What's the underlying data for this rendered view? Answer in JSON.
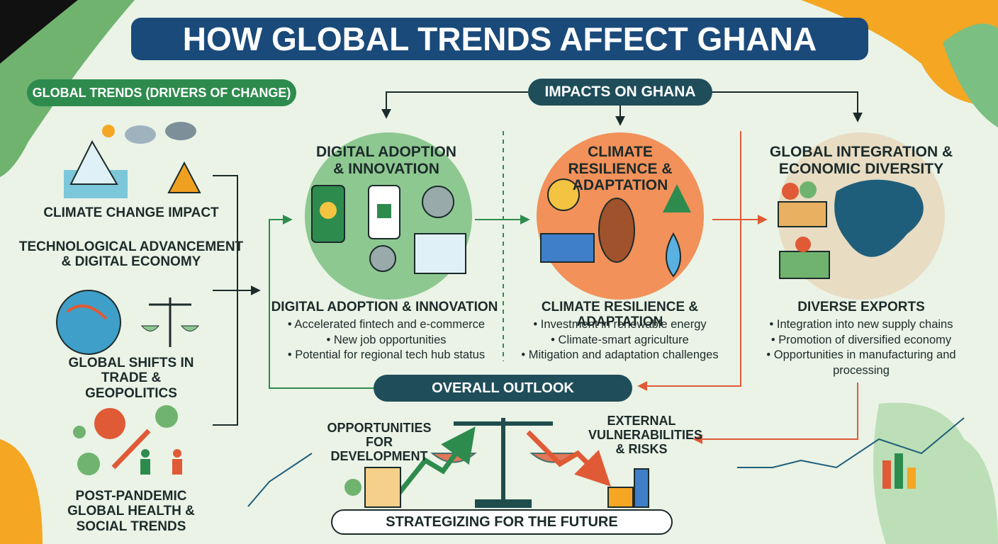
{
  "title": "HOW GLOBAL TRENDS AFFECT GHANA",
  "drivers": {
    "heading": "GLOBAL TRENDS (DRIVERS OF CHANGE)",
    "items": [
      "CLIMATE CHANGE IMPACT",
      "TECHNOLOGICAL ADVANCEMENT & DIGITAL ECONOMY",
      "GLOBAL SHIFTS IN TRADE & GEOPOLITICS",
      "POST-PANDEMIC GLOBAL HEALTH & SOCIAL TRENDS"
    ]
  },
  "impacts": {
    "heading": "IMPACTS ON GHANA",
    "columns": [
      {
        "title": "DIGITAL ADOPTION & INNOVATION",
        "subtitle": "DIGITAL ADOPTION & INNOVATION",
        "bullets": [
          "Accelerated fintech and e-commerce",
          "New job opportunities",
          "Potential for regional tech hub status"
        ]
      },
      {
        "title": "CLIMATE RESILIENCE & ADAPTATION",
        "subtitle": "CLIMATE RESILIENCE & ADAPTATION",
        "bullets": [
          "Investment in renewable energy",
          "Climate-smart agriculture",
          "Mitigation and adaptation challenges"
        ]
      },
      {
        "title": "GLOBAL INTEGRATION & ECONOMIC DIVERSITY",
        "subtitle": "DIVERSE EXPORTS",
        "bullets": [
          "Integration into new supply chains",
          "Promotion of diversified economy",
          "Opportunities in manufacturing and processing"
        ]
      }
    ]
  },
  "outlook": {
    "heading": "OVERALL OUTLOOK",
    "opportunities": "OPPORTUNITIES FOR DEVELOPMENT",
    "risks": "EXTERNAL VULNERABILITIES & RISKS",
    "footer": "STRATEGIZING FOR THE FUTURE"
  }
}
